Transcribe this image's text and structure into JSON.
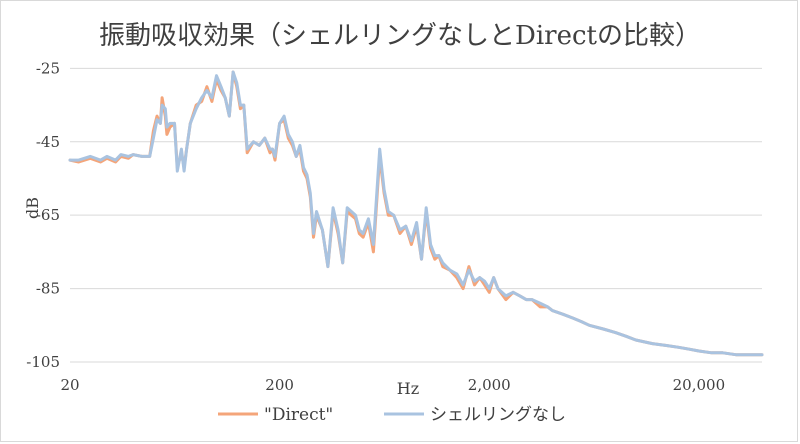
{
  "chart_data": {
    "type": "line",
    "title": "振動吸収効果（シェルリングなしとDirectの比較）",
    "xlabel": "Hz",
    "ylabel": "dB",
    "x_scale": "log",
    "xlim": [
      20,
      40000
    ],
    "ylim": [
      -105,
      -20
    ],
    "x_tick_values": [
      20,
      200,
      2000,
      20000
    ],
    "x_tick_labels": [
      "20",
      "200",
      "2,000",
      "20,000"
    ],
    "y_tick_values": [
      -25,
      -45,
      -65,
      -85,
      -105
    ],
    "y_tick_labels": [
      "-25",
      "-45",
      "-65",
      "-85",
      "-105"
    ],
    "grid": "horizontal",
    "legend_position": "bottom",
    "series": [
      {
        "name": "\"Direct\"",
        "color": "#f4a57a",
        "x": [
          20,
          22,
          25,
          28,
          30,
          33,
          35,
          38,
          40,
          44,
          48,
          50,
          52,
          54,
          55,
          57,
          58,
          60,
          63,
          65,
          68,
          70,
          72,
          75,
          80,
          85,
          90,
          95,
          100,
          105,
          110,
          115,
          120,
          125,
          130,
          135,
          140,
          150,
          160,
          170,
          180,
          185,
          190,
          200,
          210,
          220,
          230,
          240,
          250,
          260,
          270,
          280,
          290,
          300,
          320,
          340,
          360,
          380,
          400,
          420,
          440,
          460,
          480,
          500,
          530,
          560,
          600,
          630,
          660,
          700,
          750,
          800,
          850,
          900,
          950,
          1000,
          1050,
          1100,
          1150,
          1200,
          1300,
          1400,
          1500,
          1600,
          1700,
          1800,
          1900,
          2000,
          2100,
          2200,
          2400,
          2600,
          2800,
          3000,
          3200,
          3500,
          3800,
          4000,
          4500,
          5000,
          5500,
          6000,
          7000,
          8000,
          9000,
          10000,
          12000,
          14000,
          16000,
          18000,
          20000,
          23000,
          26000,
          30000,
          35000,
          40000
        ],
        "values": [
          -50,
          -50.5,
          -49.5,
          -50.5,
          -49.5,
          -50.5,
          -49,
          -49.5,
          -48.5,
          -49,
          -49,
          -42,
          -38,
          -40,
          -33,
          -38,
          -43,
          -41,
          -40,
          -52,
          -48,
          -52,
          -47,
          -40,
          -35,
          -34,
          -30,
          -34,
          -28,
          -31,
          -33,
          -38,
          -26,
          -30,
          -36,
          -35,
          -48,
          -45,
          -46,
          -44,
          -48,
          -47,
          -50,
          -40,
          -39,
          -44,
          -46,
          -49,
          -47,
          -53,
          -55,
          -60,
          -71,
          -65,
          -69,
          -79,
          -64,
          -70,
          -78,
          -64,
          -65,
          -66,
          -70,
          -71,
          -67,
          -75,
          -49,
          -59,
          -65,
          -65,
          -70,
          -68,
          -73,
          -68,
          -77,
          -64,
          -74,
          -77,
          -76,
          -79,
          -80,
          -82,
          -85,
          -79,
          -84,
          -82,
          -84,
          -86,
          -82,
          -85,
          -88,
          -86,
          -87,
          -88,
          -88,
          -90,
          -90,
          -91,
          -92,
          -93,
          -94,
          -95,
          -96,
          -97,
          -98,
          -99,
          -100,
          -100.5,
          -101,
          -101.5,
          -102,
          -102.5,
          -102.5,
          -103,
          -103,
          -103
        ]
      },
      {
        "name": "シェルリングなし",
        "color": "#a9c3e0",
        "x": [
          20,
          22,
          25,
          28,
          30,
          33,
          35,
          38,
          40,
          44,
          48,
          50,
          52,
          54,
          55,
          57,
          58,
          60,
          63,
          65,
          68,
          70,
          72,
          75,
          80,
          85,
          90,
          95,
          100,
          105,
          110,
          115,
          120,
          125,
          130,
          135,
          140,
          150,
          160,
          170,
          180,
          185,
          190,
          200,
          210,
          220,
          230,
          240,
          250,
          260,
          270,
          280,
          290,
          300,
          320,
          340,
          360,
          380,
          400,
          420,
          440,
          460,
          480,
          500,
          530,
          560,
          600,
          630,
          660,
          700,
          750,
          800,
          850,
          900,
          950,
          1000,
          1050,
          1100,
          1150,
          1200,
          1300,
          1400,
          1500,
          1600,
          1700,
          1800,
          1900,
          2000,
          2100,
          2200,
          2400,
          2600,
          2800,
          3000,
          3200,
          3500,
          3800,
          4000,
          4500,
          5000,
          5500,
          6000,
          7000,
          8000,
          9000,
          10000,
          12000,
          14000,
          16000,
          18000,
          20000,
          23000,
          26000,
          30000,
          35000,
          40000
        ],
        "values": [
          -50,
          -50,
          -49,
          -50,
          -49,
          -50,
          -48.5,
          -49,
          -48.5,
          -49,
          -49,
          -44,
          -39,
          -40,
          -35,
          -36,
          -41,
          -40,
          -40,
          -53,
          -47,
          -53,
          -47,
          -40,
          -36,
          -33,
          -31,
          -33,
          -27,
          -30,
          -33,
          -38,
          -26,
          -29,
          -35,
          -35,
          -47,
          -45,
          -46,
          -44,
          -47,
          -47,
          -49,
          -40,
          -38,
          -43,
          -45,
          -49,
          -46,
          -52,
          -54,
          -59,
          -70,
          -64,
          -69,
          -79,
          -63,
          -69,
          -78,
          -63,
          -64,
          -65,
          -69,
          -70,
          -66,
          -73,
          -47,
          -58,
          -64,
          -65,
          -69,
          -68,
          -72,
          -67,
          -77,
          -63,
          -73,
          -76,
          -76,
          -78,
          -80,
          -81,
          -84,
          -80,
          -83,
          -82,
          -83,
          -85,
          -82,
          -85,
          -87,
          -86,
          -87,
          -88,
          -88,
          -89,
          -90,
          -91,
          -92,
          -93,
          -94,
          -95,
          -96,
          -97,
          -98,
          -99,
          -100,
          -100.5,
          -101,
          -101.5,
          -102,
          -102.5,
          -102.5,
          -103,
          -103,
          -103
        ]
      }
    ]
  }
}
